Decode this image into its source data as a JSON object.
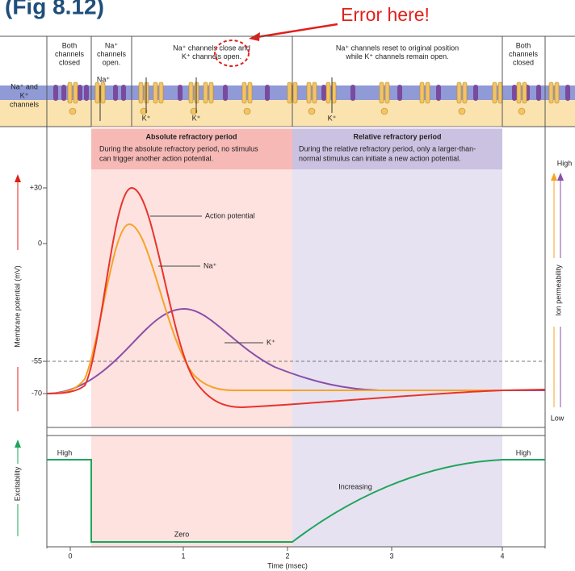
{
  "header": {
    "title": "(Fig 8.12)",
    "annotation": "Error here!"
  },
  "channel_panel": {
    "row_label": [
      "Na⁺ and",
      "K⁺",
      "channels"
    ],
    "columns": [
      [
        "Both",
        "channels",
        "closed"
      ],
      [
        "Na⁺",
        "channels",
        "open."
      ],
      [
        "Na⁺ channels close and",
        "K⁺ channels open."
      ],
      [
        "Na⁺ channels reset to original position",
        "while K⁺ channels remain open."
      ],
      [
        "Both",
        "channels",
        "closed"
      ]
    ],
    "ion_labels": [
      "Na⁺",
      "K⁺",
      "K⁺",
      "K⁺"
    ]
  },
  "graph": {
    "y_axis_label": "Membrane potential (mV)",
    "y_ticks": [
      "+30",
      "0",
      "-55",
      "-70"
    ],
    "right_axis_label": "Ion permeability",
    "right_high": "High",
    "right_low": "Low",
    "periods": [
      {
        "title": "Absolute refractory period",
        "text": [
          "During the absolute refractory period, no stimulus",
          "can trigger another action potential."
        ]
      },
      {
        "title": "Relative refractory period",
        "text": [
          "During the relative refractory period, only a larger-than-",
          "normal stimulus can initiate a new action potential."
        ]
      }
    ],
    "curve_labels": [
      "Action potential",
      "Na⁺",
      "K⁺"
    ]
  },
  "excitability": {
    "axis_label": "Excitability",
    "labels": [
      "High",
      "Zero",
      "Increasing",
      "High"
    ]
  },
  "x_axis": {
    "ticks": [
      "0",
      "1",
      "2",
      "3",
      "4"
    ],
    "label": "Time (msec)"
  }
}
